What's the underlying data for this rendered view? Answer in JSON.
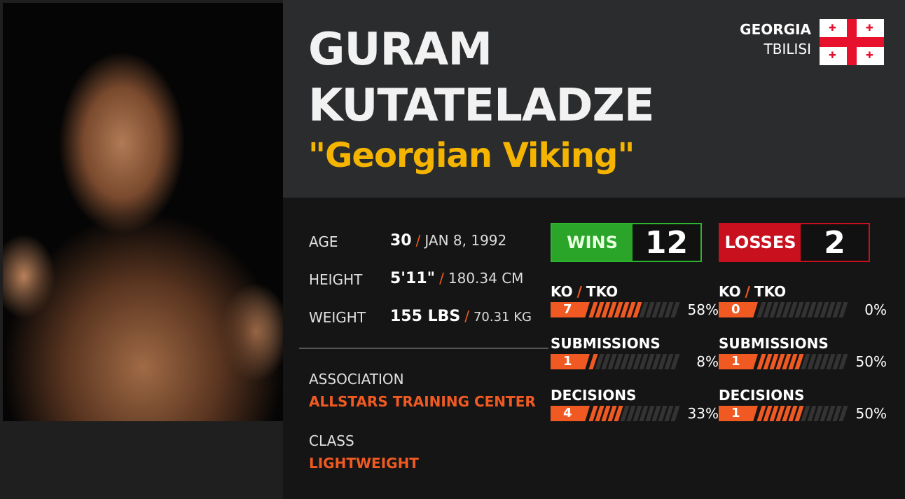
{
  "fighter": {
    "first_name": "GURAM",
    "last_name": "KUTATELADZE",
    "nickname": "\"Georgian Viking\"",
    "country": "GEORGIA",
    "city": "TBILISI",
    "flag": "georgia-flag"
  },
  "info": {
    "age_label": "AGE",
    "age": "30",
    "dob": "JAN 8, 1992",
    "height_label": "HEIGHT",
    "height_imperial": "5'11\"",
    "height_metric": "180.34 CM",
    "weight_label": "WEIGHT",
    "weight_imperial": "155 LBS",
    "weight_metric": "70.31 KG",
    "association_label": "ASSOCIATION",
    "association": "ALLSTARS TRAINING CENTER",
    "class_label": "CLASS",
    "class": "LIGHTWEIGHT",
    "separator": "/"
  },
  "record": {
    "wins": {
      "label": "WINS",
      "count": "12",
      "color": "#2aa52a",
      "stats": [
        {
          "label_a": "KO",
          "label_b": "TKO",
          "count": "7",
          "percent": 58,
          "percent_text": "58%"
        },
        {
          "label": "SUBMISSIONS",
          "count": "1",
          "percent": 8,
          "percent_text": "8%"
        },
        {
          "label": "DECISIONS",
          "count": "4",
          "percent": 33,
          "percent_text": "33%"
        }
      ]
    },
    "losses": {
      "label": "LOSSES",
      "count": "2",
      "color": "#c8101e",
      "stats": [
        {
          "label_a": "KO",
          "label_b": "TKO",
          "count": "0",
          "percent": 0,
          "percent_text": "0%"
        },
        {
          "label": "SUBMISSIONS",
          "count": "1",
          "percent": 50,
          "percent_text": "50%"
        },
        {
          "label": "DECISIONS",
          "count": "1",
          "percent": 50,
          "percent_text": "50%"
        }
      ]
    }
  },
  "colors": {
    "accent": "#f05a22",
    "nickname": "#f5b400"
  }
}
